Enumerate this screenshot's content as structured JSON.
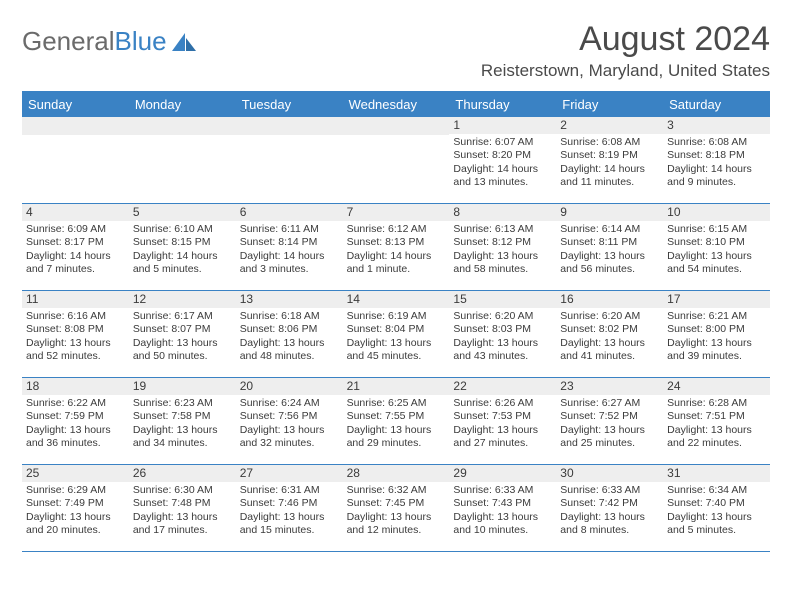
{
  "brand": {
    "word1": "General",
    "word2": "Blue"
  },
  "title": "August 2024",
  "location": "Reisterstown, Maryland, United States",
  "colors": {
    "accent": "#3a82c4",
    "band": "#eeeeee",
    "text": "#3b3b3b"
  },
  "dow": [
    "Sunday",
    "Monday",
    "Tuesday",
    "Wednesday",
    "Thursday",
    "Friday",
    "Saturday"
  ],
  "weeks": [
    [
      null,
      null,
      null,
      null,
      {
        "n": "1",
        "sr": "6:07 AM",
        "ss": "8:20 PM",
        "dl": "14 hours and 13 minutes."
      },
      {
        "n": "2",
        "sr": "6:08 AM",
        "ss": "8:19 PM",
        "dl": "14 hours and 11 minutes."
      },
      {
        "n": "3",
        "sr": "6:08 AM",
        "ss": "8:18 PM",
        "dl": "14 hours and 9 minutes."
      }
    ],
    [
      {
        "n": "4",
        "sr": "6:09 AM",
        "ss": "8:17 PM",
        "dl": "14 hours and 7 minutes."
      },
      {
        "n": "5",
        "sr": "6:10 AM",
        "ss": "8:15 PM",
        "dl": "14 hours and 5 minutes."
      },
      {
        "n": "6",
        "sr": "6:11 AM",
        "ss": "8:14 PM",
        "dl": "14 hours and 3 minutes."
      },
      {
        "n": "7",
        "sr": "6:12 AM",
        "ss": "8:13 PM",
        "dl": "14 hours and 1 minute."
      },
      {
        "n": "8",
        "sr": "6:13 AM",
        "ss": "8:12 PM",
        "dl": "13 hours and 58 minutes."
      },
      {
        "n": "9",
        "sr": "6:14 AM",
        "ss": "8:11 PM",
        "dl": "13 hours and 56 minutes."
      },
      {
        "n": "10",
        "sr": "6:15 AM",
        "ss": "8:10 PM",
        "dl": "13 hours and 54 minutes."
      }
    ],
    [
      {
        "n": "11",
        "sr": "6:16 AM",
        "ss": "8:08 PM",
        "dl": "13 hours and 52 minutes."
      },
      {
        "n": "12",
        "sr": "6:17 AM",
        "ss": "8:07 PM",
        "dl": "13 hours and 50 minutes."
      },
      {
        "n": "13",
        "sr": "6:18 AM",
        "ss": "8:06 PM",
        "dl": "13 hours and 48 minutes."
      },
      {
        "n": "14",
        "sr": "6:19 AM",
        "ss": "8:04 PM",
        "dl": "13 hours and 45 minutes."
      },
      {
        "n": "15",
        "sr": "6:20 AM",
        "ss": "8:03 PM",
        "dl": "13 hours and 43 minutes."
      },
      {
        "n": "16",
        "sr": "6:20 AM",
        "ss": "8:02 PM",
        "dl": "13 hours and 41 minutes."
      },
      {
        "n": "17",
        "sr": "6:21 AM",
        "ss": "8:00 PM",
        "dl": "13 hours and 39 minutes."
      }
    ],
    [
      {
        "n": "18",
        "sr": "6:22 AM",
        "ss": "7:59 PM",
        "dl": "13 hours and 36 minutes."
      },
      {
        "n": "19",
        "sr": "6:23 AM",
        "ss": "7:58 PM",
        "dl": "13 hours and 34 minutes."
      },
      {
        "n": "20",
        "sr": "6:24 AM",
        "ss": "7:56 PM",
        "dl": "13 hours and 32 minutes."
      },
      {
        "n": "21",
        "sr": "6:25 AM",
        "ss": "7:55 PM",
        "dl": "13 hours and 29 minutes."
      },
      {
        "n": "22",
        "sr": "6:26 AM",
        "ss": "7:53 PM",
        "dl": "13 hours and 27 minutes."
      },
      {
        "n": "23",
        "sr": "6:27 AM",
        "ss": "7:52 PM",
        "dl": "13 hours and 25 minutes."
      },
      {
        "n": "24",
        "sr": "6:28 AM",
        "ss": "7:51 PM",
        "dl": "13 hours and 22 minutes."
      }
    ],
    [
      {
        "n": "25",
        "sr": "6:29 AM",
        "ss": "7:49 PM",
        "dl": "13 hours and 20 minutes."
      },
      {
        "n": "26",
        "sr": "6:30 AM",
        "ss": "7:48 PM",
        "dl": "13 hours and 17 minutes."
      },
      {
        "n": "27",
        "sr": "6:31 AM",
        "ss": "7:46 PM",
        "dl": "13 hours and 15 minutes."
      },
      {
        "n": "28",
        "sr": "6:32 AM",
        "ss": "7:45 PM",
        "dl": "13 hours and 12 minutes."
      },
      {
        "n": "29",
        "sr": "6:33 AM",
        "ss": "7:43 PM",
        "dl": "13 hours and 10 minutes."
      },
      {
        "n": "30",
        "sr": "6:33 AM",
        "ss": "7:42 PM",
        "dl": "13 hours and 8 minutes."
      },
      {
        "n": "31",
        "sr": "6:34 AM",
        "ss": "7:40 PM",
        "dl": "13 hours and 5 minutes."
      }
    ]
  ],
  "labels": {
    "sunrise": "Sunrise:",
    "sunset": "Sunset:",
    "daylight": "Daylight:"
  }
}
